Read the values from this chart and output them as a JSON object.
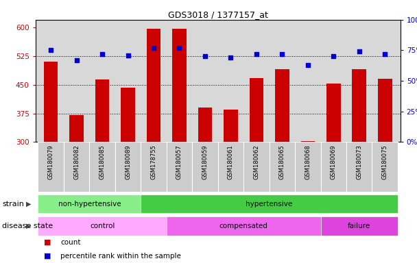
{
  "title": "GDS3018 / 1377157_at",
  "samples": [
    "GSM180079",
    "GSM180082",
    "GSM180085",
    "GSM180089",
    "GSM178755",
    "GSM180057",
    "GSM180059",
    "GSM180061",
    "GSM180062",
    "GSM180065",
    "GSM180068",
    "GSM180069",
    "GSM180073",
    "GSM180075"
  ],
  "counts": [
    510,
    370,
    463,
    443,
    597,
    596,
    390,
    385,
    468,
    490,
    302,
    453,
    490,
    465
  ],
  "percentile_ranks": [
    75,
    67,
    72,
    71,
    77,
    77,
    70,
    69,
    72,
    72,
    63,
    70,
    74,
    72
  ],
  "ylim_left": [
    300,
    620
  ],
  "ylim_right": [
    0,
    100
  ],
  "yticks_left": [
    300,
    375,
    450,
    525,
    600
  ],
  "yticks_right": [
    0,
    25,
    50,
    75,
    100
  ],
  "bar_color": "#cc0000",
  "dot_color": "#0000cc",
  "grid_color": "#000000",
  "strain_groups": [
    {
      "label": "non-hypertensive",
      "start": 0,
      "end": 4,
      "color": "#88ee88"
    },
    {
      "label": "hypertensive",
      "start": 4,
      "end": 14,
      "color": "#44cc44"
    }
  ],
  "disease_groups": [
    {
      "label": "control",
      "start": 0,
      "end": 5,
      "color": "#ffaaff"
    },
    {
      "label": "compensated",
      "start": 5,
      "end": 11,
      "color": "#ee66ee"
    },
    {
      "label": "failure",
      "start": 11,
      "end": 14,
      "color": "#dd44dd"
    }
  ],
  "strain_label": "strain",
  "disease_label": "disease state",
  "legend_count_label": "count",
  "legend_pct_label": "percentile rank within the sample",
  "tick_color_left": "#cc0000",
  "tick_color_right": "#0000cc",
  "background_color": "#ffffff",
  "plot_bg_color": "#d8d8d8",
  "xtick_bg_color": "#cccccc"
}
